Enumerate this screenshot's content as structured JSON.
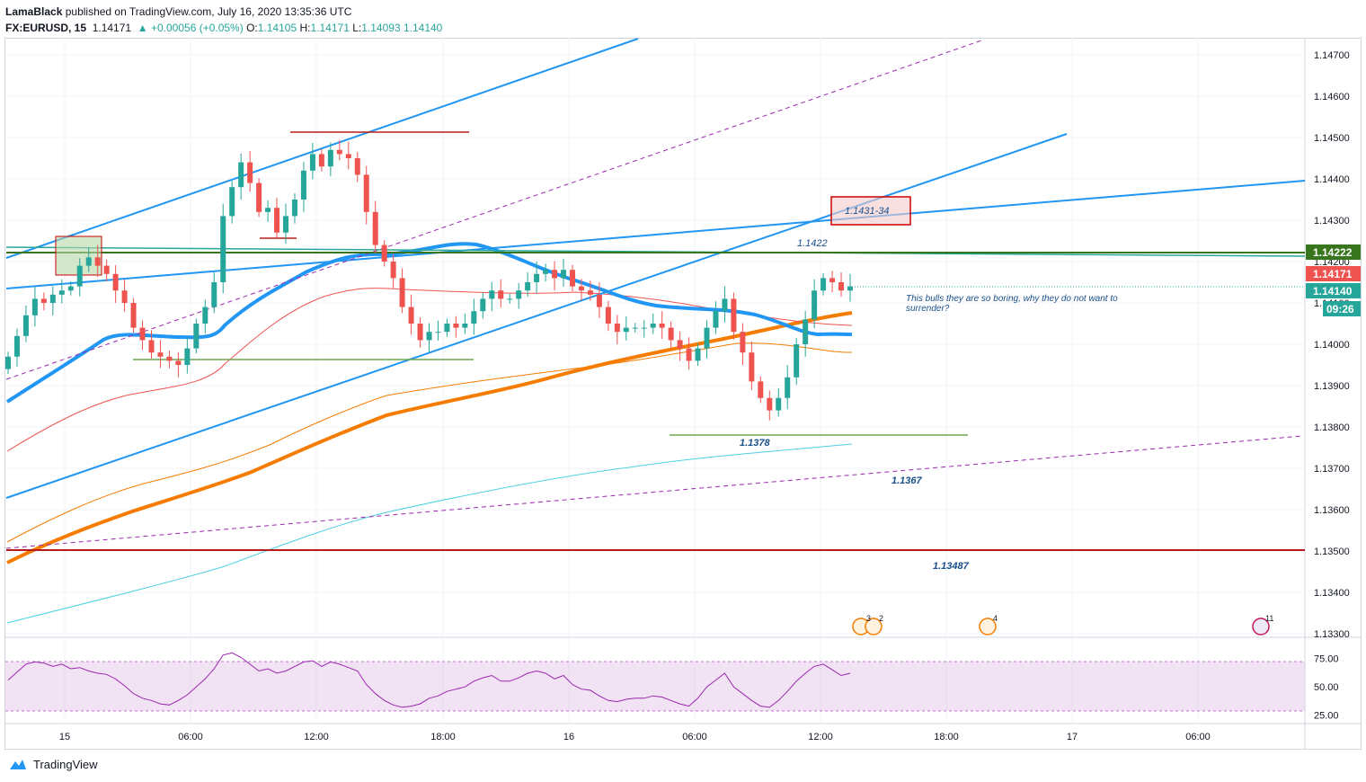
{
  "header": {
    "author": "LamaBlack",
    "published": "published on TradingView.com, July 16, 2020 13:35:36 UTC",
    "symbol": "FX:EURUSD, 15",
    "last": "1.14171",
    "change": "▲ +0.00056 (+0.05%)",
    "o_label": "O:",
    "o_val": "1.14105",
    "h_label": "H:",
    "h_val": "1.14171",
    "l_label": "L:",
    "l_val": "1.14093",
    "c_val": "1.14140"
  },
  "footer": {
    "brand": "TradingView"
  },
  "colors": {
    "bull": "#26a69a",
    "bear": "#ef5350",
    "blue": "#2196f3",
    "orange": "#f57c00",
    "green_line": "#38761d",
    "red_line": "#b71c1c",
    "purple": "#9c27b0",
    "teal": "#4dd0e1"
  },
  "chart_data": {
    "type": "candlestick",
    "symbol": "FX:EURUSD",
    "interval": "15",
    "ylim": [
      1.133,
      1.147
    ],
    "y_ticks": [
      "1.14700",
      "1.14600",
      "1.14500",
      "1.14400",
      "1.14300",
      "1.14200",
      "1.14100",
      "1.14000",
      "1.13900",
      "1.13800",
      "1.13700",
      "1.13600",
      "1.13500",
      "1.13400",
      "1.13300"
    ],
    "x_ticks": [
      "15",
      "06:00",
      "12:00",
      "18:00",
      "16",
      "06:00",
      "12:00",
      "18:00",
      "17",
      "06:00"
    ],
    "price_labels": [
      "1.14222",
      "1.14171",
      "1.14140",
      "09:26"
    ],
    "horizontal_levels": [
      1.14222,
      1.13487,
      1.1378,
      1.13965
    ],
    "annotations": [
      "1.1431-34",
      "1.1422",
      "1.1378",
      "1.1367",
      "1.13487",
      "This bulls they are so boring, why they do not want to surrender?"
    ],
    "series": [
      {
        "name": "close",
        "values": [
          1.1397,
          1.1402,
          1.1407,
          1.1411,
          1.141,
          1.1412,
          1.1413,
          1.1414,
          1.1419,
          1.1421,
          1.1419,
          1.1417,
          1.1413,
          1.141,
          1.1404,
          1.1401,
          1.1398,
          1.1397,
          1.1396,
          1.1395,
          1.1399,
          1.1405,
          1.1409,
          1.1415,
          1.1431,
          1.1438,
          1.1444,
          1.1439,
          1.1432,
          1.1433,
          1.1427,
          1.1431,
          1.1435,
          1.1442,
          1.1446,
          1.1443,
          1.1447,
          1.1446,
          1.1445,
          1.1441,
          1.1432,
          1.1424,
          1.142,
          1.1416,
          1.1409,
          1.1405,
          1.1401,
          1.1403,
          1.1403,
          1.1405,
          1.1404,
          1.1405,
          1.1408,
          1.1411,
          1.1413,
          1.1411,
          1.1411,
          1.1413,
          1.1415,
          1.1417,
          1.1418,
          1.1416,
          1.1418,
          1.1414,
          1.1413,
          1.1412,
          1.1409,
          1.1405,
          1.1403,
          1.1404,
          1.1404,
          1.1404,
          1.1405,
          1.1404,
          1.1401,
          1.1399,
          1.1396,
          1.1399,
          1.1404,
          1.1408,
          1.1411,
          1.1403,
          1.1398,
          1.1391,
          1.1387,
          1.1384,
          1.1387,
          1.1392,
          1.14,
          1.1406,
          1.1413,
          1.1416,
          1.1415,
          1.1413,
          1.1414
        ]
      }
    ],
    "rsi": {
      "name": "RSI",
      "ylim": [
        20,
        85
      ],
      "levels": [
        70,
        30
      ],
      "y_ticks": [
        "75.00",
        "50.00",
        "25.00"
      ],
      "values": [
        56,
        63,
        70,
        72,
        71,
        68,
        70,
        66,
        67,
        64,
        62,
        61,
        57,
        51,
        44,
        40,
        38,
        35,
        34,
        38,
        43,
        50,
        57,
        66,
        78,
        80,
        76,
        70,
        64,
        66,
        62,
        64,
        68,
        72,
        73,
        68,
        72,
        70,
        67,
        64,
        52,
        44,
        38,
        34,
        32,
        33,
        35,
        40,
        42,
        46,
        48,
        50,
        55,
        58,
        60,
        55,
        55,
        58,
        62,
        64,
        62,
        57,
        60,
        52,
        48,
        47,
        42,
        38,
        37,
        39,
        40,
        40,
        42,
        41,
        38,
        35,
        33,
        40,
        50,
        56,
        62,
        50,
        44,
        38,
        33,
        32,
        38,
        46,
        55,
        62,
        68,
        70,
        65,
        60,
        62
      ]
    }
  }
}
